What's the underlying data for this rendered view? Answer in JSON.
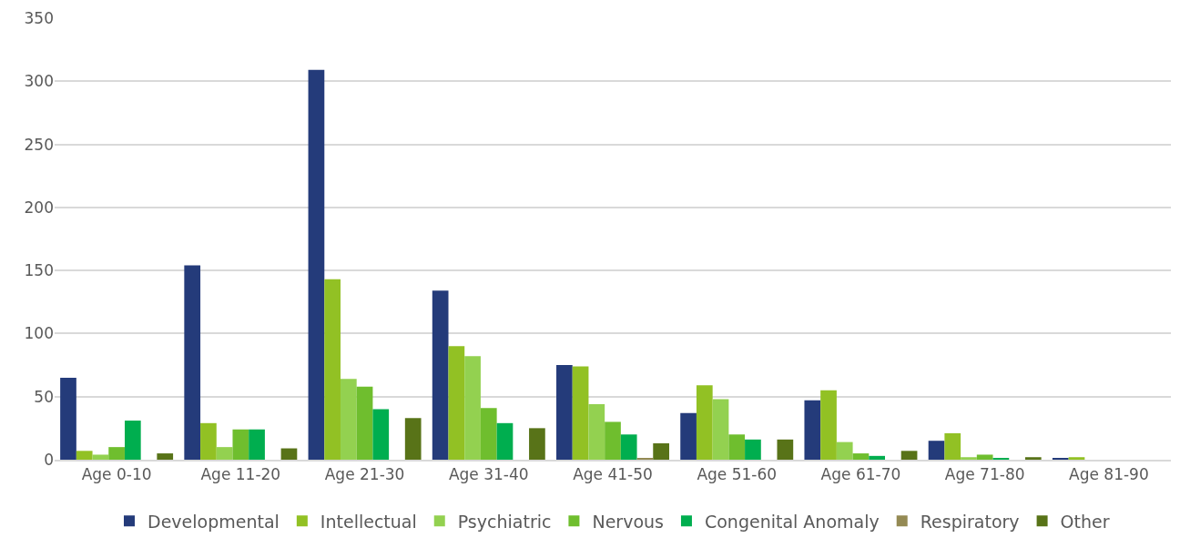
{
  "chart_data": {
    "type": "bar",
    "categories": [
      "Age 0-10",
      "Age 11-20",
      "Age 21-30",
      "Age 31-40",
      "Age 41-50",
      "Age 51-60",
      "Age 61-70",
      "Age 71-80",
      "Age 81-90"
    ],
    "series": [
      {
        "name": "Developmental",
        "color": "#243b7a",
        "values": [
          65,
          154,
          309,
          134,
          75,
          37,
          47,
          15,
          1
        ]
      },
      {
        "name": "Intellectual",
        "color": "#92c124",
        "values": [
          7,
          29,
          143,
          90,
          74,
          59,
          55,
          21,
          2
        ]
      },
      {
        "name": "Psychiatric",
        "color": "#93d150",
        "values": [
          4,
          10,
          64,
          82,
          44,
          48,
          14,
          2,
          0
        ]
      },
      {
        "name": "Nervous",
        "color": "#6fbe2e",
        "values": [
          10,
          24,
          58,
          41,
          30,
          20,
          5,
          4,
          0
        ]
      },
      {
        "name": "Congenital Anomaly",
        "color": "#00ae4f",
        "values": [
          31,
          24,
          40,
          29,
          20,
          16,
          3,
          1,
          0
        ]
      },
      {
        "name": "Respiratory",
        "color": "#948a54",
        "values": [
          0,
          0,
          0,
          0,
          1,
          0,
          0,
          0,
          0
        ]
      },
      {
        "name": "Other",
        "color": "#587318",
        "values": [
          5,
          9,
          33,
          25,
          13,
          16,
          7,
          2,
          0
        ]
      }
    ],
    "ylim": [
      0,
      350
    ],
    "yticks": [
      0,
      50,
      100,
      150,
      200,
      250,
      300,
      350
    ],
    "grid": "y",
    "legend": "bottom"
  }
}
